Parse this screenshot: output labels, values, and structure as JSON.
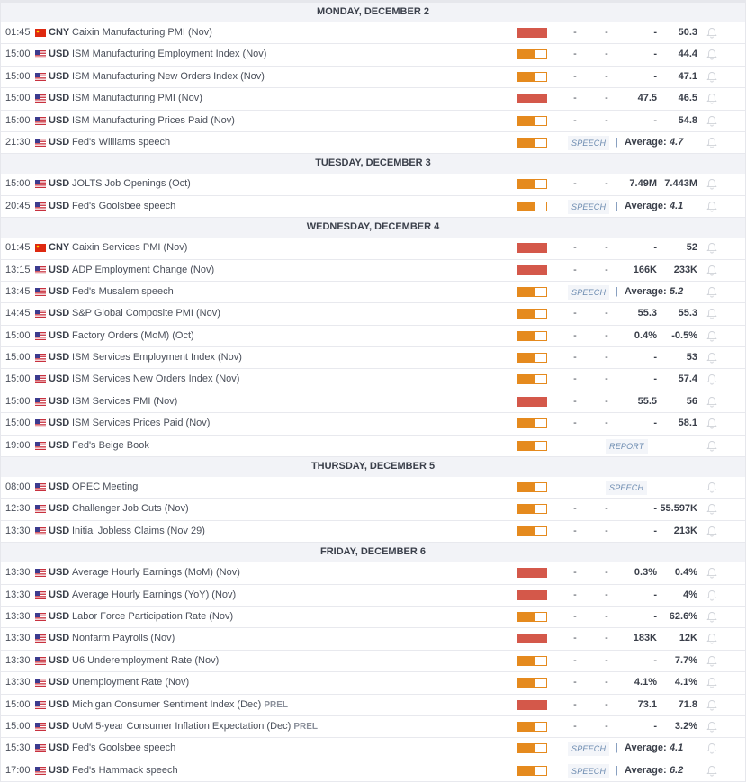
{
  "colors": {
    "high_impact": "#d4584a",
    "medium_impact": "#e58a1e",
    "day_header_bg": "#f2f3f7"
  },
  "days": [
    {
      "label": "MONDAY, DECEMBER 2",
      "rows": [
        {
          "time": "01:45",
          "flag": "china-flag",
          "currency": "CNY",
          "event": "Caixin Manufacturing PMI (Nov)",
          "impact": "high",
          "actual": "-",
          "deviation": "-",
          "consensus": "-",
          "previous": "50.3"
        },
        {
          "time": "15:00",
          "flag": "us-flag",
          "currency": "USD",
          "event": "ISM Manufacturing Employment Index (Nov)",
          "impact": "medium",
          "actual": "-",
          "deviation": "-",
          "consensus": "-",
          "previous": "44.4"
        },
        {
          "time": "15:00",
          "flag": "us-flag",
          "currency": "USD",
          "event": "ISM Manufacturing New Orders Index (Nov)",
          "impact": "medium",
          "actual": "-",
          "deviation": "-",
          "consensus": "-",
          "previous": "47.1"
        },
        {
          "time": "15:00",
          "flag": "us-flag",
          "currency": "USD",
          "event": "ISM Manufacturing PMI (Nov)",
          "impact": "high",
          "actual": "-",
          "deviation": "-",
          "consensus": "47.5",
          "previous": "46.5"
        },
        {
          "time": "15:00",
          "flag": "us-flag",
          "currency": "USD",
          "event": "ISM Manufacturing Prices Paid (Nov)",
          "impact": "medium",
          "actual": "-",
          "deviation": "-",
          "consensus": "-",
          "previous": "54.8"
        },
        {
          "time": "21:30",
          "flag": "us-flag",
          "currency": "USD",
          "event": "Fed's Williams speech",
          "impact": "medium",
          "tag": "SPEECH",
          "average_label": "Average:",
          "average": "4.7"
        }
      ]
    },
    {
      "label": "TUESDAY, DECEMBER 3",
      "rows": [
        {
          "time": "15:00",
          "flag": "us-flag",
          "currency": "USD",
          "event": "JOLTS Job Openings (Oct)",
          "impact": "medium",
          "actual": "-",
          "deviation": "-",
          "consensus": "7.49M",
          "previous": "7.443M"
        },
        {
          "time": "20:45",
          "flag": "us-flag",
          "currency": "USD",
          "event": "Fed's Goolsbee speech",
          "impact": "medium",
          "tag": "SPEECH",
          "average_label": "Average:",
          "average": "4.1"
        }
      ]
    },
    {
      "label": "WEDNESDAY, DECEMBER 4",
      "rows": [
        {
          "time": "01:45",
          "flag": "china-flag",
          "currency": "CNY",
          "event": "Caixin Services PMI (Nov)",
          "impact": "high",
          "actual": "-",
          "deviation": "-",
          "consensus": "-",
          "previous": "52"
        },
        {
          "time": "13:15",
          "flag": "us-flag",
          "currency": "USD",
          "event": "ADP Employment Change (Nov)",
          "impact": "high",
          "actual": "-",
          "deviation": "-",
          "consensus": "166K",
          "previous": "233K"
        },
        {
          "time": "13:45",
          "flag": "us-flag",
          "currency": "USD",
          "event": "Fed's Musalem speech",
          "impact": "medium",
          "tag": "SPEECH",
          "average_label": "Average:",
          "average": "5.2"
        },
        {
          "time": "14:45",
          "flag": "us-flag",
          "currency": "USD",
          "event": "S&P Global Composite PMI (Nov)",
          "impact": "medium",
          "actual": "-",
          "deviation": "-",
          "consensus": "55.3",
          "previous": "55.3"
        },
        {
          "time": "15:00",
          "flag": "us-flag",
          "currency": "USD",
          "event": "Factory Orders (MoM) (Oct)",
          "impact": "medium",
          "actual": "-",
          "deviation": "-",
          "consensus": "0.4%",
          "previous": "-0.5%"
        },
        {
          "time": "15:00",
          "flag": "us-flag",
          "currency": "USD",
          "event": "ISM Services Employment Index (Nov)",
          "impact": "medium",
          "actual": "-",
          "deviation": "-",
          "consensus": "-",
          "previous": "53"
        },
        {
          "time": "15:00",
          "flag": "us-flag",
          "currency": "USD",
          "event": "ISM Services New Orders Index (Nov)",
          "impact": "medium",
          "actual": "-",
          "deviation": "-",
          "consensus": "-",
          "previous": "57.4"
        },
        {
          "time": "15:00",
          "flag": "us-flag",
          "currency": "USD",
          "event": "ISM Services PMI (Nov)",
          "impact": "high",
          "actual": "-",
          "deviation": "-",
          "consensus": "55.5",
          "previous": "56"
        },
        {
          "time": "15:00",
          "flag": "us-flag",
          "currency": "USD",
          "event": "ISM Services Prices Paid (Nov)",
          "impact": "medium",
          "actual": "-",
          "deviation": "-",
          "consensus": "-",
          "previous": "58.1"
        },
        {
          "time": "19:00",
          "flag": "us-flag",
          "currency": "USD",
          "event": "Fed's Beige Book",
          "impact": "medium",
          "tag": "REPORT"
        }
      ]
    },
    {
      "label": "THURSDAY, DECEMBER 5",
      "rows": [
        {
          "time": "08:00",
          "flag": "us-flag",
          "currency": "USD",
          "event": "OPEC Meeting",
          "impact": "medium",
          "tag": "SPEECH"
        },
        {
          "time": "12:30",
          "flag": "us-flag",
          "currency": "USD",
          "event": "Challenger Job Cuts (Nov)",
          "impact": "medium",
          "actual": "-",
          "deviation": "-",
          "consensus": "-",
          "previous": "55.597K"
        },
        {
          "time": "13:30",
          "flag": "us-flag",
          "currency": "USD",
          "event": "Initial Jobless Claims (Nov 29)",
          "impact": "medium",
          "actual": "-",
          "deviation": "-",
          "consensus": "-",
          "previous": "213K"
        }
      ]
    },
    {
      "label": "FRIDAY, DECEMBER 6",
      "rows": [
        {
          "time": "13:30",
          "flag": "us-flag",
          "currency": "USD",
          "event": "Average Hourly Earnings (MoM) (Nov)",
          "impact": "high",
          "actual": "-",
          "deviation": "-",
          "consensus": "0.3%",
          "previous": "0.4%"
        },
        {
          "time": "13:30",
          "flag": "us-flag",
          "currency": "USD",
          "event": "Average Hourly Earnings (YoY) (Nov)",
          "impact": "high",
          "actual": "-",
          "deviation": "-",
          "consensus": "-",
          "previous": "4%"
        },
        {
          "time": "13:30",
          "flag": "us-flag",
          "currency": "USD",
          "event": "Labor Force Participation Rate (Nov)",
          "impact": "medium",
          "actual": "-",
          "deviation": "-",
          "consensus": "-",
          "previous": "62.6%"
        },
        {
          "time": "13:30",
          "flag": "us-flag",
          "currency": "USD",
          "event": "Nonfarm Payrolls (Nov)",
          "impact": "high",
          "actual": "-",
          "deviation": "-",
          "consensus": "183K",
          "previous": "12K"
        },
        {
          "time": "13:30",
          "flag": "us-flag",
          "currency": "USD",
          "event": "U6 Underemployment Rate (Nov)",
          "impact": "medium",
          "actual": "-",
          "deviation": "-",
          "consensus": "-",
          "previous": "7.7%"
        },
        {
          "time": "13:30",
          "flag": "us-flag",
          "currency": "USD",
          "event": "Unemployment Rate (Nov)",
          "impact": "medium",
          "actual": "-",
          "deviation": "-",
          "consensus": "4.1%",
          "previous": "4.1%"
        },
        {
          "time": "15:00",
          "flag": "us-flag",
          "currency": "USD",
          "event": "Michigan Consumer Sentiment Index (Dec)",
          "suffix": "PREL",
          "impact": "high",
          "actual": "-",
          "deviation": "-",
          "consensus": "73.1",
          "previous": "71.8"
        },
        {
          "time": "15:00",
          "flag": "us-flag",
          "currency": "USD",
          "event": "UoM 5-year Consumer Inflation Expectation (Dec)",
          "suffix": "PREL",
          "impact": "medium",
          "actual": "-",
          "deviation": "-",
          "consensus": "-",
          "previous": "3.2%"
        },
        {
          "time": "15:30",
          "flag": "us-flag",
          "currency": "USD",
          "event": "Fed's Goolsbee speech",
          "impact": "medium",
          "tag": "SPEECH",
          "average_label": "Average:",
          "average": "4.1"
        },
        {
          "time": "17:00",
          "flag": "us-flag",
          "currency": "USD",
          "event": "Fed's Hammack speech",
          "impact": "medium",
          "tag": "SPEECH",
          "average_label": "Average:",
          "average": "6.2"
        }
      ]
    }
  ]
}
